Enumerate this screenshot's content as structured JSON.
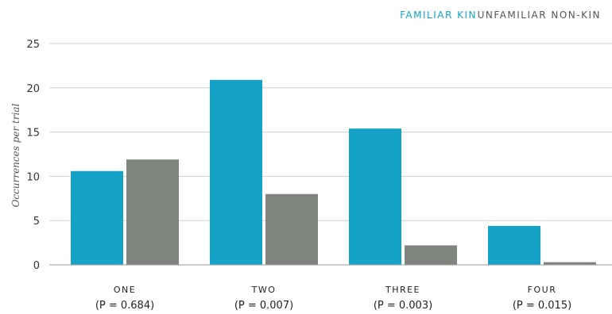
{
  "chart_data": {
    "type": "bar",
    "categories": [
      "ONE",
      "TWO",
      "THREE",
      "FOUR"
    ],
    "p_values": [
      "(P = 0.684)",
      "(P = 0.007)",
      "(P = 0.003)",
      "(P = 0.015)"
    ],
    "series": [
      {
        "name": "FAMILIAR KIN",
        "color": "#14a3c7",
        "values": [
          10.6,
          20.9,
          15.4,
          4.4
        ]
      },
      {
        "name": "UNFAMILIAR NON-KIN",
        "color": "#80847e",
        "values": [
          11.9,
          8.0,
          2.2,
          0.3
        ]
      }
    ],
    "title": "",
    "xlabel": "",
    "ylabel": "Occurrences per trial",
    "ylim": [
      0,
      25
    ],
    "yticks": [
      0,
      5,
      10,
      15,
      20,
      25
    ],
    "grid": true,
    "legend_position": "top-right"
  },
  "colors": {
    "gridline": "#d0d0d0",
    "axis": "#999999"
  }
}
